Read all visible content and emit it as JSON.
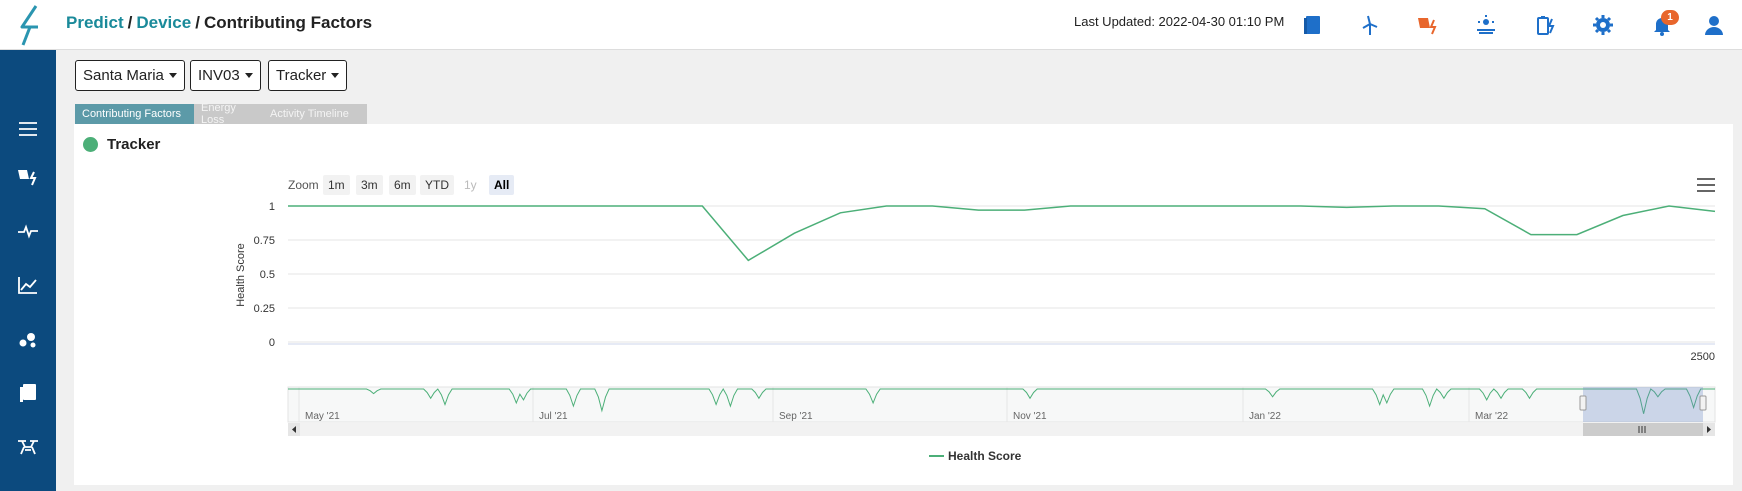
{
  "breadcrumb": {
    "part1": "Predict",
    "part2": "Device",
    "part3": "Contributing Factors",
    "sep": "/"
  },
  "header": {
    "last_updated": "Last Updated: 2022-04-30 01:10 PM",
    "notification_count": "1",
    "icons": [
      "book-icon",
      "wind-turbine-icon",
      "solar-alert-icon",
      "solar-sun-icon",
      "battery-charge-icon",
      "settings-gear-icon",
      "bell-icon",
      "user-icon"
    ]
  },
  "sidebar": {
    "items": [
      "menu-icon",
      "solar-panel-icon",
      "pulse-icon",
      "line-chart-icon",
      "scatter-icon",
      "documents-icon",
      "drone-icon"
    ]
  },
  "filters": {
    "site": "Santa Maria",
    "device": "INV03",
    "factor": "Tracker"
  },
  "tabs": [
    {
      "label": "Contributing Factors",
      "active": true
    },
    {
      "label": "Energy Loss",
      "active": false
    },
    {
      "label": "Activity Timeline",
      "active": false
    }
  ],
  "panel": {
    "title": "Tracker",
    "status_color": "#4caf78"
  },
  "zoom": {
    "label": "Zoom",
    "buttons": [
      "1m",
      "3m",
      "6m",
      "YTD",
      "1y",
      "All"
    ],
    "disabled": "1y",
    "selected": "All"
  },
  "chart_data": {
    "type": "line",
    "ylabel": "Health Score",
    "ylim": [
      0,
      1
    ],
    "yticks": [
      "1",
      "0.75",
      "0.5",
      "0.25",
      "0"
    ],
    "x_axis_value": "2500",
    "series": [
      {
        "name": "Health Score",
        "color": "#4caf78",
        "values": [
          1,
          1,
          1,
          1,
          1,
          1,
          1,
          1,
          1,
          1,
          0.6,
          0.8,
          0.95,
          1,
          1,
          0.97,
          0.97,
          1,
          1,
          1,
          1,
          1,
          1,
          0.99,
          1,
          1,
          0.98,
          0.79,
          0.79,
          0.93,
          1,
          0.96
        ]
      }
    ],
    "navigator": {
      "month_labels": [
        "May '21",
        "Jul '21",
        "Sep '21",
        "Nov '21",
        "Jan '22",
        "Mar '22"
      ]
    },
    "legend": "Health Score"
  }
}
